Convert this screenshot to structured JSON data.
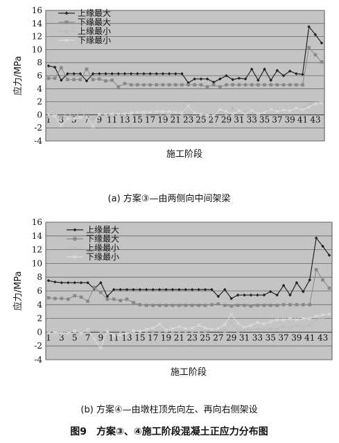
{
  "figure_caption": "图9　方案③、④施工阶段混凝土正应力分布图",
  "chart_data": [
    {
      "type": "line",
      "caption": "(a) 方案③—由两侧向中间架梁",
      "xlabel": "施工阶段",
      "ylabel": "应力/MPa",
      "ylim": [
        -4,
        16
      ],
      "yticks": [
        -4,
        -2,
        0,
        2,
        4,
        6,
        8,
        10,
        12,
        14,
        16
      ],
      "xlim": [
        1,
        44
      ],
      "xtick_labels": [
        "1",
        "3",
        "5",
        "7",
        "9",
        "11",
        "13",
        "15",
        "17",
        "19",
        "21",
        "23",
        "25",
        "27",
        "29",
        "31",
        "33",
        "35",
        "37",
        "39",
        "41",
        "43"
      ],
      "grid": true,
      "legend_position": "top-left",
      "series": [
        {
          "name": "上缘最大",
          "color": "#222222",
          "marker": "diamond",
          "values": [
            7.5,
            7.3,
            5.3,
            6.3,
            6.3,
            6.3,
            5.2,
            6.3,
            6.3,
            6.3,
            6.3,
            6.3,
            6.3,
            6.3,
            6.3,
            6.3,
            6.3,
            6.3,
            6.3,
            6.3,
            6.3,
            6.3,
            4.9,
            5.5,
            5.5,
            5.5,
            5.0,
            5.5,
            6.0,
            5.4,
            5.6,
            5.5,
            7.0,
            5.3,
            7.0,
            5.3,
            6.8,
            6.0,
            6.7,
            6.3,
            6.2,
            13.5,
            12.3,
            11.0
          ]
        },
        {
          "name": "下缘最大",
          "color": "#888888",
          "marker": "square",
          "values": [
            5.6,
            5.6,
            7.2,
            5.4,
            5.4,
            5.4,
            7.0,
            5.4,
            5.5,
            5.2,
            5.3,
            4.3,
            4.8,
            4.6,
            4.6,
            4.6,
            4.6,
            4.6,
            4.6,
            4.6,
            4.6,
            4.6,
            4.6,
            4.6,
            4.6,
            4.3,
            4.6,
            4.3,
            4.6,
            4.6,
            4.6,
            4.6,
            4.6,
            4.6,
            4.6,
            4.6,
            4.6,
            4.6,
            4.6,
            4.6,
            4.6,
            10.3,
            9.2,
            8.1
          ]
        },
        {
          "name": "上缘最小",
          "color": "#bbbbbb",
          "marker": "triangle",
          "values": [
            -0.3,
            0.2,
            -0.4,
            0.3,
            -0.5,
            0.4,
            -0.3,
            -0.6,
            0.1,
            0.4,
            -0.2,
            0.5,
            -0.4,
            0.2,
            0.3,
            -0.1,
            0.4,
            0.6,
            -0.3,
            0.2,
            0.5,
            0.1,
            1.6,
            0.4,
            0.1,
            0.3,
            0.1,
            0.6,
            0.2,
            1.1,
            0.3,
            0.5,
            0.8,
            0.2,
            0.6,
            1.0,
            0.4,
            1.0,
            0.6,
            0.9,
            1.0,
            1.6,
            1.9,
            2.0
          ]
        },
        {
          "name": "下缘最小",
          "color": "#dddddd",
          "marker": "cross",
          "values": [
            0.0,
            -0.2,
            -1.6,
            -0.6,
            -0.5,
            -0.4,
            -0.3,
            -1.8,
            0.1,
            0.1,
            0.1,
            0.1,
            0.1,
            0.3,
            0.4,
            0.4,
            0.4,
            0.5,
            0.5,
            0.5,
            0.4,
            0.3,
            1.4,
            0.3,
            0.1,
            0.0,
            -0.2,
            0.8,
            0.5,
            0.1,
            0.6,
            0.1,
            0.7,
            0.2,
            0.4,
            0.9,
            0.5,
            0.8,
            0.6,
            1.0,
            0.8,
            1.2,
            1.7,
            1.8
          ]
        }
      ]
    },
    {
      "type": "line",
      "caption": "(b) 方案④—由墩柱顶先向左、再向右侧架设",
      "xlabel": "施工阶段",
      "ylabel": "应力/MPa",
      "ylim": [
        -4,
        16
      ],
      "yticks": [
        -4,
        -2,
        0,
        2,
        4,
        6,
        8,
        10,
        12,
        14,
        16
      ],
      "xlim": [
        1,
        44
      ],
      "xtick_labels": [
        "1",
        "3",
        "5",
        "7",
        "9",
        "11",
        "13",
        "15",
        "17",
        "19",
        "21",
        "23",
        "25",
        "27",
        "29",
        "31",
        "33",
        "35",
        "37",
        "39",
        "41",
        "43"
      ],
      "grid": true,
      "legend_position": "top-center",
      "series": [
        {
          "name": "上缘最大",
          "color": "#222222",
          "marker": "diamond",
          "values": [
            7.5,
            7.3,
            7.2,
            7.2,
            7.2,
            7.2,
            7.2,
            6.3,
            7.2,
            5.2,
            6.2,
            6.2,
            6.2,
            6.2,
            6.2,
            6.2,
            6.2,
            6.2,
            6.2,
            6.2,
            6.2,
            6.2,
            6.2,
            6.2,
            6.2,
            6.2,
            5.2,
            6.2,
            4.9,
            5.4,
            5.4,
            5.4,
            5.4,
            5.4,
            5.9,
            5.4,
            6.8,
            5.4,
            7.2,
            5.9,
            7.6,
            13.7,
            12.5,
            11.2
          ]
        },
        {
          "name": "下缘最大",
          "color": "#888888",
          "marker": "square",
          "values": [
            5.0,
            4.9,
            4.9,
            4.8,
            5.3,
            5.1,
            4.5,
            6.5,
            5.8,
            4.8,
            4.8,
            4.6,
            4.8,
            4.3,
            4.0,
            3.9,
            3.9,
            3.9,
            3.9,
            3.9,
            3.9,
            3.9,
            3.9,
            3.9,
            3.9,
            4.0,
            4.1,
            3.9,
            3.8,
            3.9,
            3.9,
            3.8,
            3.9,
            3.9,
            3.9,
            3.9,
            4.0,
            4.0,
            4.0,
            4.0,
            4.0,
            9.1,
            7.6,
            6.4
          ]
        },
        {
          "name": "上缘最小",
          "color": "#bbbbbb",
          "marker": "triangle",
          "values": [
            0.0,
            0.2,
            -0.2,
            0.2,
            0.1,
            0.1,
            0.0,
            0.3,
            0.0,
            0.1,
            0.3,
            0.1,
            0.2,
            0.1,
            0.1,
            0.1,
            0.2,
            0.1,
            0.2,
            0.1,
            0.1,
            0.2,
            0.1,
            0.1,
            0.2,
            0.3,
            0.4,
            0.2,
            1.5,
            0.2,
            0.5,
            0.3,
            0.5,
            0.4,
            0.5,
            0.5,
            0.9,
            0.6,
            1.0,
            0.8,
            1.0,
            1.8,
            2.2,
            2.4
          ]
        },
        {
          "name": "下缘最小",
          "color": "#dddddd",
          "marker": "cross",
          "values": [
            -0.2,
            0.0,
            -0.1,
            -0.1,
            0.2,
            -0.1,
            0.4,
            -1.0,
            -2.3,
            0.1,
            -0.5,
            -0.4,
            -0.2,
            0.2,
            0.1,
            0.4,
            0.6,
            1.2,
            0.3,
            0.5,
            0.8,
            0.5,
            0.6,
            1.0,
            0.6,
            0.4,
            0.5,
            1.1,
            2.6,
            1.3,
            0.7,
            1.0,
            1.4,
            1.2,
            1.5,
            1.8,
            1.8,
            2.0,
            1.8,
            2.0,
            2.0,
            2.3,
            2.5,
            2.6
          ]
        }
      ]
    }
  ]
}
